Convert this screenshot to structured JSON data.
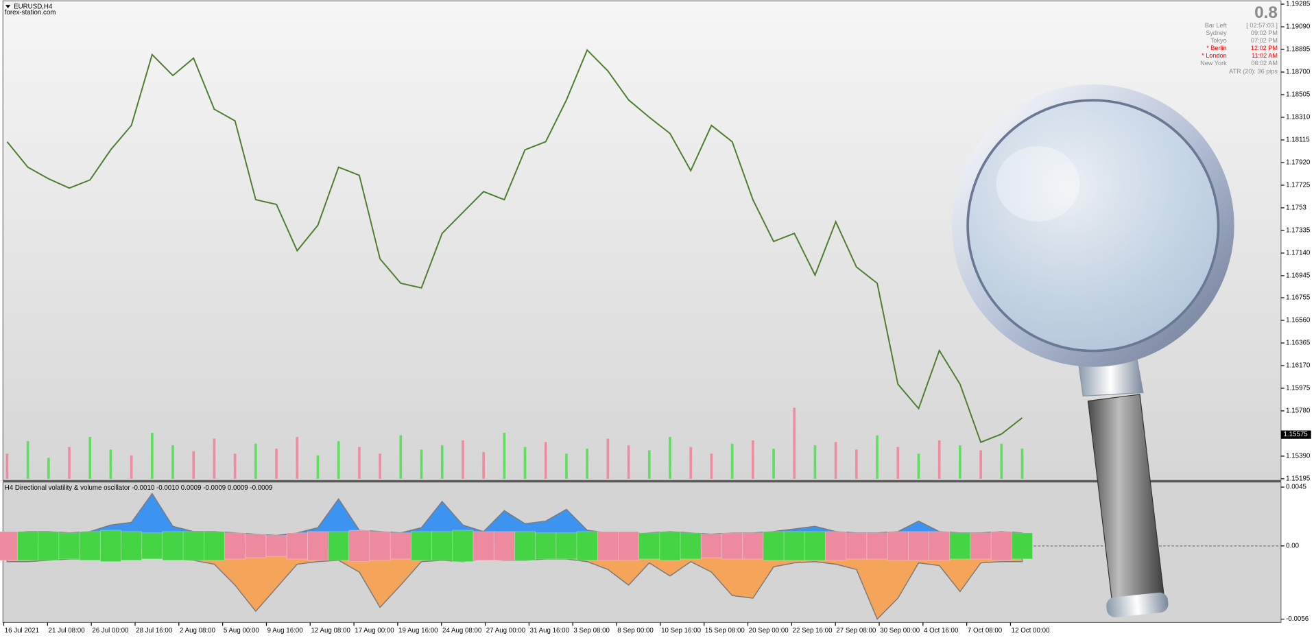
{
  "header": {
    "symbol": "EURUSD,H4",
    "source": "forex-station.com"
  },
  "info_panel": {
    "value": "0.8",
    "rows": [
      {
        "label": "Bar Left",
        "time": "[ 02:57:03 ]",
        "color": "#8a8a8a"
      },
      {
        "label": "Sydney",
        "time": "09:02 PM",
        "color": "#8a8a8a"
      },
      {
        "label": "Tokyo",
        "time": "07:02 PM",
        "color": "#8a8a8a"
      },
      {
        "label": "* Berlin",
        "time": "12:02 PM",
        "color": "#ff0000"
      },
      {
        "label": "* London",
        "time": "11:02 AM",
        "color": "#ff0000"
      },
      {
        "label": "New York",
        "time": "06:02 AM",
        "color": "#8a8a8a"
      }
    ],
    "atr": "ATR (20): 36 pips"
  },
  "chart_data": [
    {
      "type": "line",
      "series": [
        {
          "color": "#4b7d2b",
          "values": [
            1.181,
            1.1788,
            1.1778,
            1.177,
            1.1777,
            1.1803,
            1.1824,
            1.1885,
            1.1867,
            1.1882,
            1.1838,
            1.1828,
            1.176,
            1.1756,
            1.1716,
            1.1738,
            1.1788,
            1.1781,
            1.1709,
            1.1688,
            1.1684,
            1.1731,
            1.1749,
            1.1767,
            1.176,
            1.1803,
            1.181,
            1.1846,
            1.1889,
            1.1871,
            1.1846,
            1.1831,
            1.1817,
            1.1785,
            1.1824,
            1.181,
            1.176,
            1.1724,
            1.1731,
            1.1695,
            1.1741,
            1.1702,
            1.1688,
            1.1601,
            1.158,
            1.163,
            1.1601,
            1.1551,
            1.1558,
            1.1572
          ]
        }
      ],
      "ylim": [
        1.15195,
        1.19285
      ],
      "yticks": [
        1.19285,
        {
          "value": 1.1909,
          "label": "1.19090"
        },
        1.18895,
        {
          "value": 1.187,
          "label": "1.18700"
        },
        1.18505,
        {
          "value": 1.1831,
          "label": "1.18310"
        },
        1.18115,
        {
          "value": 1.1792,
          "label": "1.17920"
        },
        1.17725,
        1.1753,
        1.17335,
        {
          "value": 1.1714,
          "label": "1.17140"
        },
        1.16945,
        1.16755,
        {
          "value": 1.1656,
          "label": "1.16560"
        },
        1.16365,
        {
          "value": 1.1617,
          "label": "1.16170"
        },
        1.15975,
        {
          "value": 1.1578,
          "label": "1.15780"
        },
        {
          "value": 1.1539,
          "label": "1.15390"
        },
        1.15195
      ],
      "current_price": 1.15575,
      "volume": {
        "type": "bar",
        "ylim": [
          0,
          100
        ],
        "values": [
          30,
          45,
          25,
          38,
          50,
          35,
          28,
          55,
          40,
          33,
          48,
          30,
          42,
          36,
          50,
          28,
          45,
          38,
          30,
          52,
          35,
          40,
          46,
          32,
          55,
          38,
          44,
          30,
          36,
          48,
          40,
          34,
          50,
          38,
          30,
          42,
          46,
          36,
          85,
          40,
          44,
          35,
          52,
          38,
          30,
          46,
          40,
          34,
          42,
          36
        ],
        "colors": [
          "#f08ca0",
          "#5ee05e",
          "#5ee05e",
          "#f08ca0",
          "#5ee05e",
          "#5ee05e",
          "#f08ca0",
          "#5ee05e",
          "#5ee05e",
          "#f08ca0",
          "#f08ca0",
          "#f08ca0",
          "#5ee05e",
          "#f08ca0",
          "#f08ca0",
          "#5ee05e",
          "#5ee05e",
          "#f08ca0",
          "#f08ca0",
          "#5ee05e",
          "#5ee05e",
          "#5ee05e",
          "#f08ca0",
          "#f08ca0",
          "#5ee05e",
          "#5ee05e",
          "#f08ca0",
          "#5ee05e",
          "#5ee05e",
          "#f08ca0",
          "#f08ca0",
          "#5ee05e",
          "#5ee05e",
          "#f08ca0",
          "#f08ca0",
          "#5ee05e",
          "#f08ca0",
          "#5ee05e",
          "#f08ca0",
          "#5ee05e",
          "#f08ca0",
          "#f08ca0",
          "#5ee05e",
          "#f08ca0",
          "#5ee05e",
          "#f08ca0",
          "#5ee05e",
          "#f08ca0",
          "#5ee05e",
          "#5ee05e"
        ]
      },
      "xtick_labels": [
        "16 Jul 2021",
        "21 Jul 08:00",
        "26 Jul 00:00",
        "28 Jul 16:00",
        "2 Aug 08:00",
        "5 Aug 00:00",
        "9 Aug 16:00",
        "12 Aug 08:00",
        "17 Aug 00:00",
        "19 Aug 16:00",
        "24 Aug 08:00",
        "27 Aug 00:00",
        "31 Aug 16:00",
        "3 Sep 08:00",
        "8 Sep 00:00",
        "10 Sep 16:00",
        "15 Sep 08:00",
        "20 Sep 00:00",
        "22 Sep 16:00",
        "27 Sep 08:00",
        "30 Sep 00:00",
        "4 Oct 16:00",
        "7 Oct 08:00",
        "12 Oct 00:00"
      ]
    },
    {
      "type": "oscillator",
      "title": "H4 Directional volatility & volume oscillator -0.0010 -0.0010 0.0009 -0.0009 0.0009 -0.0009",
      "ylim": [
        -0.0056,
        0.0045
      ],
      "yticks": [
        0.0045,
        {
          "value": 0,
          "label": "0.00"
        },
        -0.0056
      ],
      "series": [
        {
          "color": "#3d94f0",
          "values": [
            0.001,
            0.0011,
            0.0011,
            0.001,
            0.0011,
            0.0016,
            0.0018,
            0.004,
            0.0015,
            0.0011,
            0.0011,
            0.001,
            0.0009,
            0.0008,
            0.001,
            0.0014,
            0.0036,
            0.0012,
            0.0011,
            0.001,
            0.0014,
            0.0034,
            0.0016,
            0.0011,
            0.0027,
            0.0017,
            0.0019,
            0.0028,
            0.0012,
            0.001,
            0.0009,
            0.001,
            0.0011,
            0.001,
            0.0009,
            0.001,
            0.001,
            0.0011,
            0.0013,
            0.0015,
            0.0011,
            0.001,
            0.001,
            0.0011,
            0.0019,
            0.0011,
            0.001,
            0.001,
            0.0011,
            0.001
          ]
        },
        {
          "color": "#f5a55a",
          "values": [
            -0.0012,
            -0.0012,
            -0.0011,
            -0.001,
            -0.001,
            -0.0011,
            -0.001,
            -0.0009,
            -0.001,
            -0.0011,
            -0.0014,
            -0.003,
            -0.005,
            -0.0032,
            -0.0014,
            -0.0012,
            -0.0011,
            -0.002,
            -0.0047,
            -0.003,
            -0.0012,
            -0.0011,
            -0.0012,
            -0.001,
            -0.0011,
            -0.0011,
            -0.001,
            -0.001,
            -0.0012,
            -0.0018,
            -0.003,
            -0.0013,
            -0.0023,
            -0.0012,
            -0.002,
            -0.0038,
            -0.004,
            -0.0016,
            -0.0013,
            -0.0012,
            -0.0014,
            -0.0018,
            -0.0056,
            -0.004,
            -0.0013,
            -0.0015,
            -0.0035,
            -0.0013,
            -0.0012,
            -0.0012
          ]
        }
      ],
      "histogram": {
        "values": [
          0.0011,
          0.0011,
          0.0011,
          0.001,
          0.0011,
          0.0012,
          0.0011,
          0.001,
          0.0011,
          0.0011,
          0.0011,
          0.001,
          0.0009,
          0.0008,
          0.001,
          0.0011,
          0.0011,
          0.0012,
          0.0011,
          0.001,
          0.0011,
          0.0011,
          0.0012,
          0.0011,
          0.0011,
          0.0011,
          0.001,
          0.001,
          0.0011,
          0.0011,
          0.0011,
          0.001,
          0.0011,
          0.001,
          0.0009,
          0.001,
          0.001,
          0.0011,
          0.0011,
          0.0011,
          0.0011,
          0.001,
          0.001,
          0.0011,
          0.0011,
          0.0011,
          0.001,
          0.001,
          0.0011,
          0.001
        ],
        "colors": [
          "#ee8aa0",
          "#44d444",
          "#44d444",
          "#44d444",
          "#44d444",
          "#44d444",
          "#44d444",
          "#44d444",
          "#44d444",
          "#44d444",
          "#44d444",
          "#ee8aa0",
          "#ee8aa0",
          "#ee8aa0",
          "#ee8aa0",
          "#ee8aa0",
          "#44d444",
          "#ee8aa0",
          "#ee8aa0",
          "#ee8aa0",
          "#44d444",
          "#44d444",
          "#44d444",
          "#ee8aa0",
          "#ee8aa0",
          "#44d444",
          "#44d444",
          "#44d444",
          "#44d444",
          "#ee8aa0",
          "#ee8aa0",
          "#44d444",
          "#44d444",
          "#44d444",
          "#ee8aa0",
          "#ee8aa0",
          "#ee8aa0",
          "#44d444",
          "#44d444",
          "#44d444",
          "#ee8aa0",
          "#ee8aa0",
          "#ee8aa0",
          "#ee8aa0",
          "#ee8aa0",
          "#ee8aa0",
          "#44d444",
          "#ee8aa0",
          "#ee8aa0",
          "#44d444"
        ]
      }
    }
  ]
}
